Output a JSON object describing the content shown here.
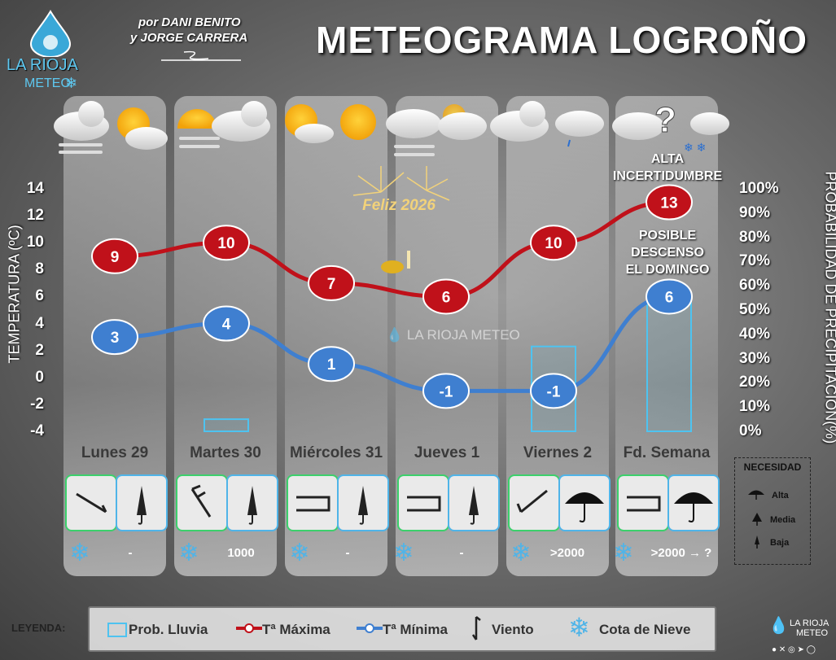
{
  "header": {
    "title": "METEOGRAMA LOGROÑO",
    "authors_line1": "por DANI BENITO",
    "authors_line2": "y JORGE CARRERA",
    "logo_line1": "LA RIOJA",
    "logo_line2": "METEO",
    "watermark": "LA RIOJA METEO",
    "celebration": "Feliz 2026"
  },
  "chart_data": {
    "type": "line",
    "categories": [
      "Lunes 29",
      "Martes 30",
      "Miércoles 31",
      "Jueves 1",
      "Viernes 2",
      "Fd. Semana"
    ],
    "series": [
      {
        "name": "Tª Máxima",
        "values": [
          9,
          10,
          7,
          6,
          10,
          13
        ],
        "color": "#c0111a"
      },
      {
        "name": "Tª Mínima",
        "values": [
          3,
          4,
          1,
          -1,
          -1,
          6
        ],
        "color": "#3f7fd0"
      }
    ],
    "precipitation_probability": [
      0,
      5,
      0,
      0,
      35,
      55
    ],
    "ylabel": "TEMPERATURA (ºC)",
    "ylim": [
      -4,
      14
    ],
    "yticks": [
      "14",
      "12",
      "10",
      "8",
      "6",
      "4",
      "2",
      "0",
      "-2",
      "-4"
    ],
    "y2label": "PROBABILIDAD DE PRECIPITACIÓN(%)",
    "y2lim": [
      0,
      100
    ],
    "y2ticks": [
      "100%",
      "90%",
      "80%",
      "70%",
      "60%",
      "50%",
      "40%",
      "30%",
      "20%",
      "10%",
      "0%"
    ],
    "annotations": [
      "ALTA INCERTIDUMBRE",
      "POSIBLE DESCENSO EL DOMINGO"
    ]
  },
  "days": [
    {
      "name": "Lunes 29",
      "snow": "-",
      "need": "Baja"
    },
    {
      "name": "Martes 30",
      "snow": "1000",
      "need": "Baja"
    },
    {
      "name": "Miércoles 31",
      "snow": "-",
      "need": "Baja"
    },
    {
      "name": "Jueves 1",
      "snow": "-",
      "need": "Baja"
    },
    {
      "name": "Viernes 2",
      "snow": ">2000",
      "need": "Alta"
    },
    {
      "name": "Fd. Semana",
      "snow": ">2000 → ?",
      "need": "Alta"
    }
  ],
  "notes": {
    "uncertainty_1": "ALTA",
    "uncertainty_2": "INCERTIDUMBRE",
    "drop_1": "POSIBLE",
    "drop_2": "DESCENSO",
    "drop_3": "EL DOMINGO"
  },
  "necesidad": {
    "title": "NECESIDAD",
    "levels": [
      "Alta",
      "Media",
      "Baja"
    ]
  },
  "legend": {
    "label": "LEYENDA:",
    "rain": "Prob. Lluvia",
    "tmax": "Tª Máxima",
    "tmin": "Tª Mínima",
    "wind": "Viento",
    "snow": "Cota de Nieve"
  },
  "colors": {
    "max": "#c0111a",
    "min": "#3f7fd0",
    "rain": "#4ec3f0",
    "wind_box": "#3cd06c",
    "accent": "#5ec8f0"
  }
}
